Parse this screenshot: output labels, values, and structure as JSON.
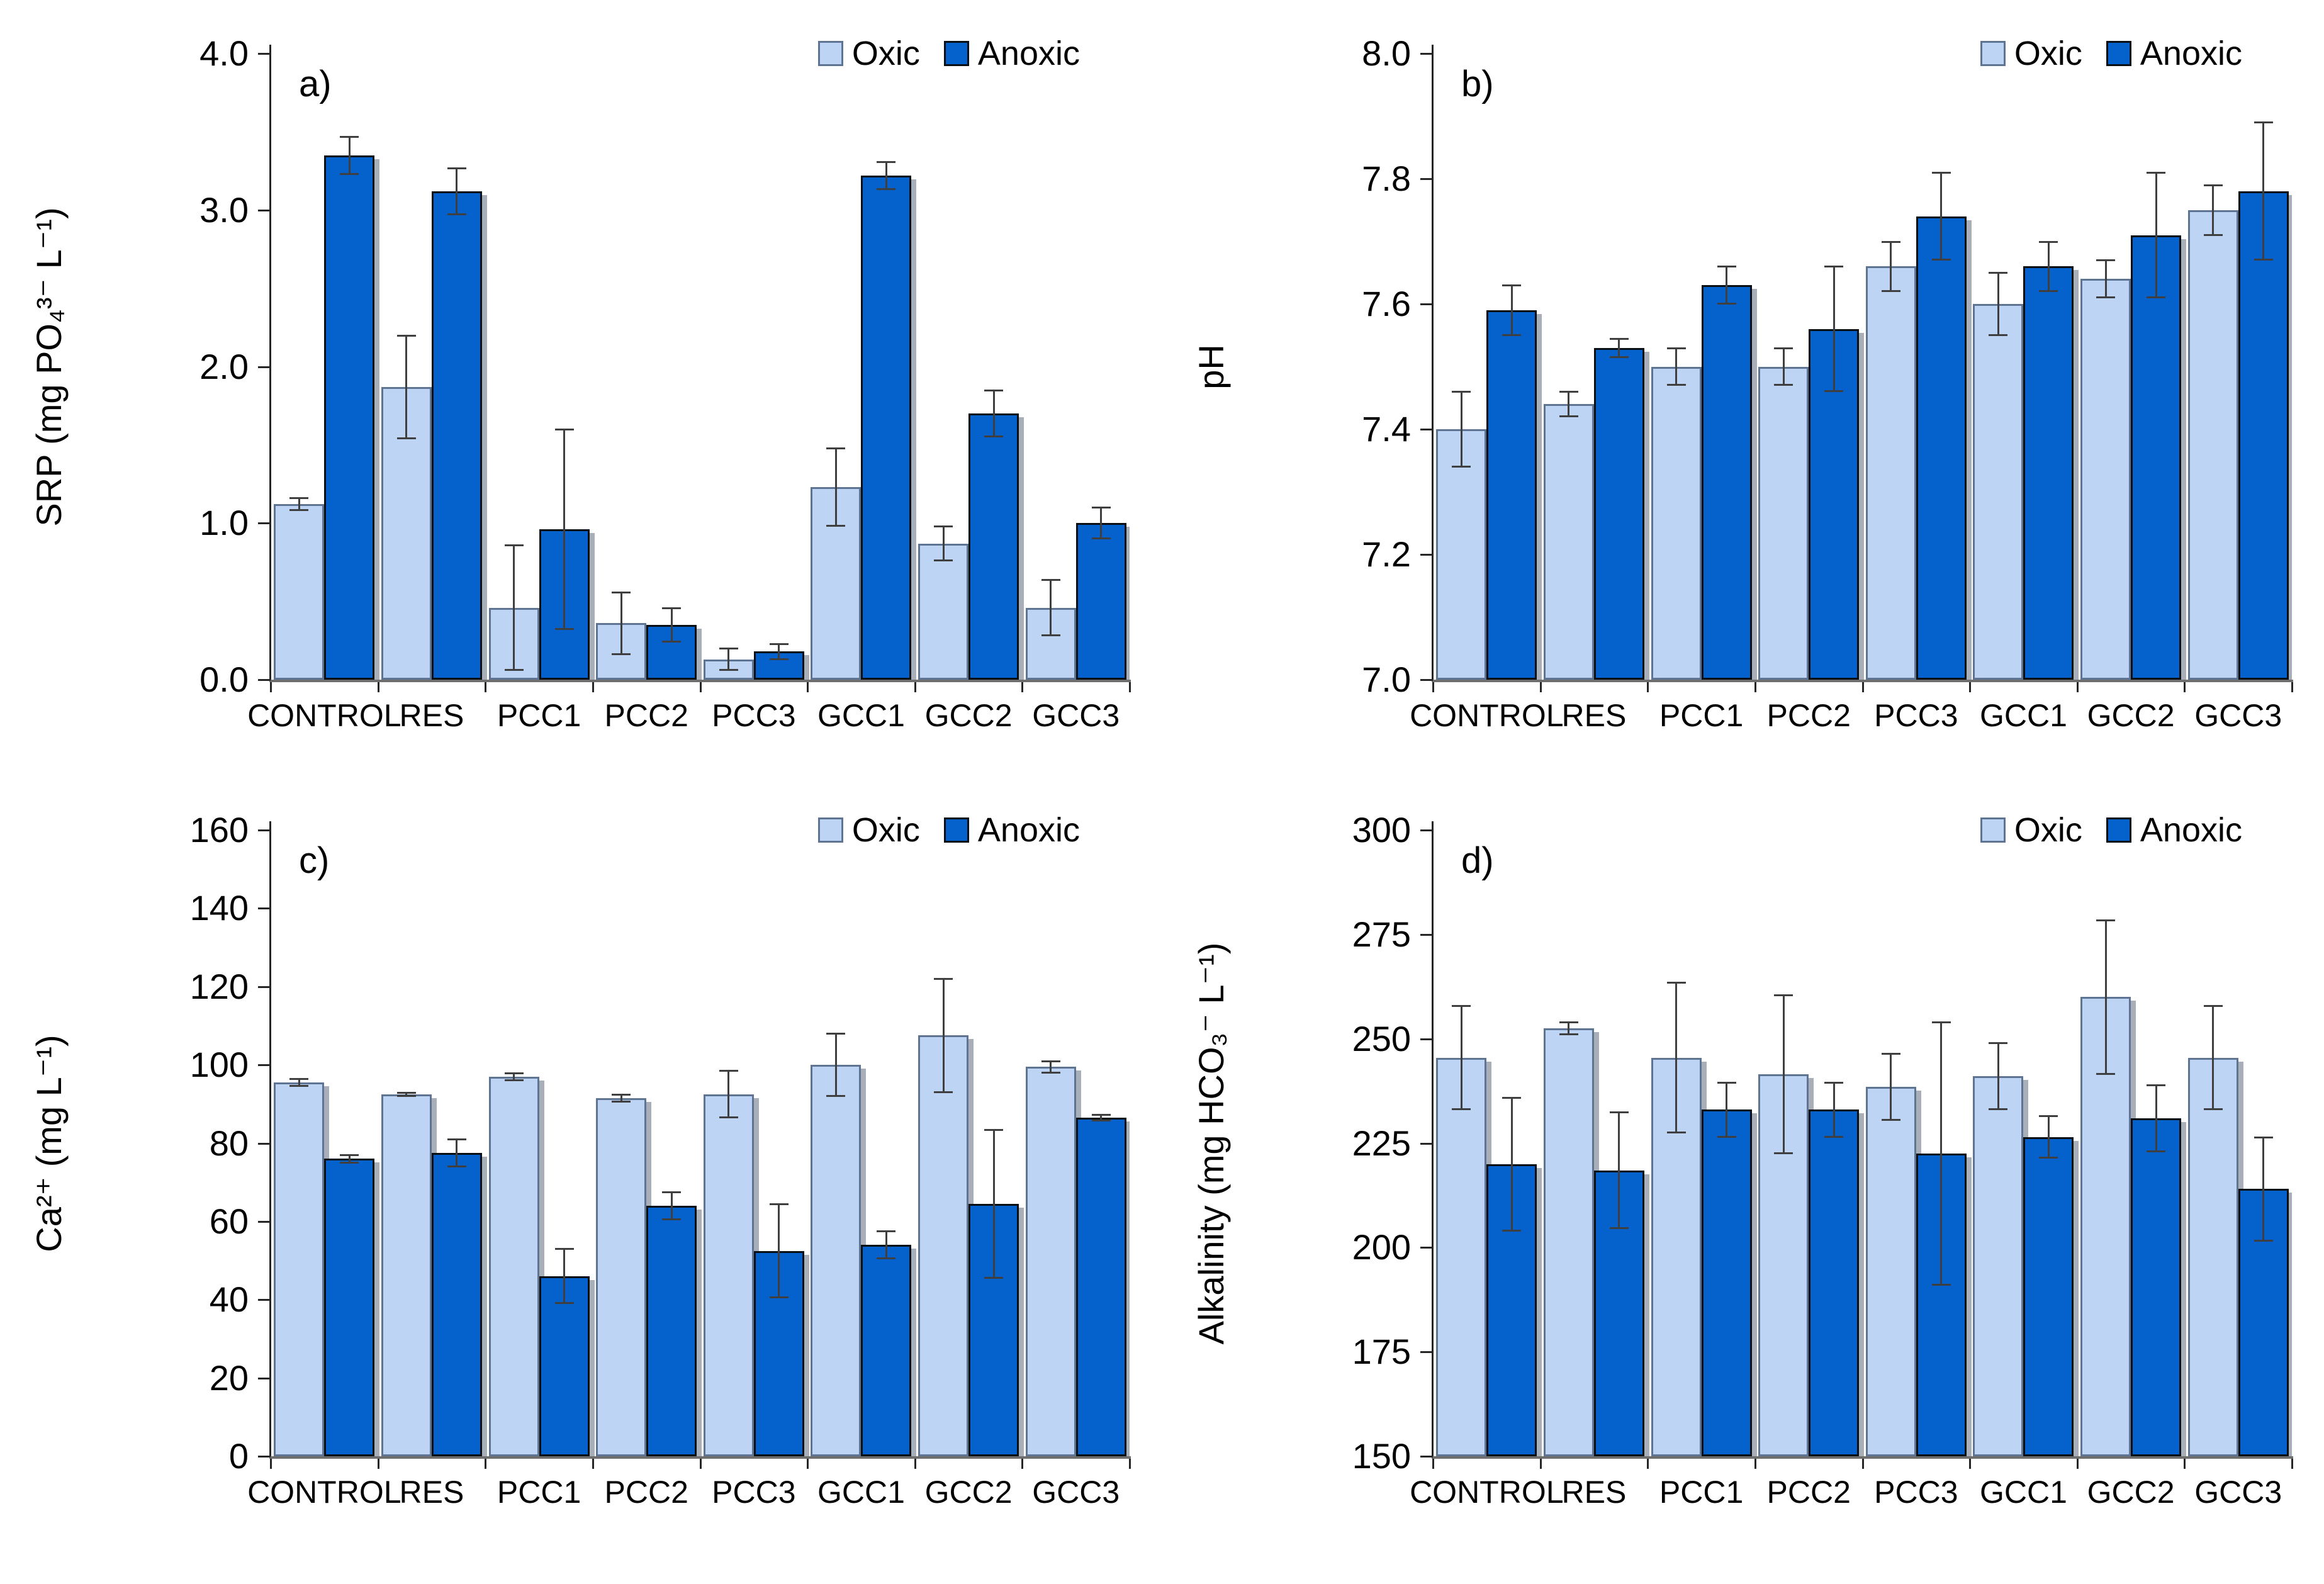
{
  "legend": {
    "oxic_label": "Oxic",
    "anoxic_label": "Anoxic"
  },
  "colors": {
    "oxic_fill": "#BDD4F5",
    "oxic_border": "#5F7392",
    "anoxic_fill": "#0562CC",
    "anoxic_border": "#0A0F14",
    "error_bar": "#3F3F3F",
    "bar_shadow": "#A9AFB8",
    "axis": "#262626",
    "baseline": "#6E6E6E"
  },
  "chart_data": [
    {
      "type": "bar",
      "panel": "a)",
      "ylabel": "SRP (mg PO₄³⁻ L⁻¹)",
      "ylim": [
        0,
        4
      ],
      "ytick_values": [
        0,
        1,
        2,
        3,
        4
      ],
      "yticks": [
        "0.0",
        "1.0",
        "2.0",
        "3.0",
        "4.0"
      ],
      "grid": false,
      "legend_position": "top-right",
      "categories": [
        "CONTROL",
        "RES",
        "PCC1",
        "PCC2",
        "PCC3",
        "GCC1",
        "GCC2",
        "GCC3"
      ],
      "series": [
        {
          "name": "Oxic",
          "values": [
            1.12,
            1.87,
            0.46,
            0.36,
            0.13,
            1.23,
            0.87,
            0.46
          ],
          "errors": [
            0.04,
            0.33,
            0.4,
            0.2,
            0.07,
            0.25,
            0.11,
            0.18
          ]
        },
        {
          "name": "Anoxic",
          "values": [
            3.35,
            3.12,
            0.96,
            0.35,
            0.18,
            3.22,
            1.7,
            1.0
          ],
          "errors": [
            0.12,
            0.15,
            0.64,
            0.11,
            0.05,
            0.09,
            0.15,
            0.1
          ]
        }
      ]
    },
    {
      "type": "bar",
      "panel": "b)",
      "ylabel": "pH",
      "ylim": [
        7.0,
        8.0
      ],
      "ytick_values": [
        7.0,
        7.2,
        7.4,
        7.6,
        7.8,
        8.0
      ],
      "yticks": [
        "7.0",
        "7.2",
        "7.4",
        "7.6",
        "7.8",
        "8.0"
      ],
      "grid": false,
      "legend_position": "top-right",
      "categories": [
        "CONTROL",
        "RES",
        "PCC1",
        "PCC2",
        "PCC3",
        "GCC1",
        "GCC2",
        "GCC3"
      ],
      "series": [
        {
          "name": "Oxic",
          "values": [
            7.4,
            7.44,
            7.5,
            7.5,
            7.66,
            7.6,
            7.64,
            7.75
          ],
          "errors": [
            0.06,
            0.02,
            0.03,
            0.03,
            0.04,
            0.05,
            0.03,
            0.04
          ]
        },
        {
          "name": "Anoxic",
          "values": [
            7.59,
            7.53,
            7.63,
            7.56,
            7.74,
            7.66,
            7.71,
            7.78
          ],
          "errors": [
            0.04,
            0.015,
            0.03,
            0.1,
            0.07,
            0.04,
            0.1,
            0.11
          ]
        }
      ]
    },
    {
      "type": "bar",
      "panel": "c)",
      "ylabel": "Ca²⁺ (mg L⁻¹)",
      "ylim": [
        0,
        160
      ],
      "ytick_values": [
        0,
        20,
        40,
        60,
        80,
        100,
        120,
        140,
        160
      ],
      "yticks": [
        "0",
        "20",
        "40",
        "60",
        "80",
        "100",
        "120",
        "140",
        "160"
      ],
      "grid": false,
      "legend_position": "top-right",
      "categories": [
        "CONTROL",
        "RES",
        "PCC1",
        "PCC2",
        "PCC3",
        "GCC1",
        "GCC2",
        "GCC3"
      ],
      "series": [
        {
          "name": "Oxic",
          "values": [
            95.5,
            92.5,
            97.0,
            91.5,
            92.5,
            100.0,
            107.5,
            99.5
          ],
          "errors": [
            1.0,
            0.5,
            1.0,
            1.0,
            6.0,
            8.0,
            14.5,
            1.5
          ]
        },
        {
          "name": "Anoxic",
          "values": [
            76.0,
            77.5,
            46.0,
            64.0,
            52.5,
            54.0,
            64.5,
            86.5
          ],
          "errors": [
            1.0,
            3.5,
            7.0,
            3.5,
            12.0,
            3.5,
            19.0,
            0.8
          ]
        }
      ]
    },
    {
      "type": "bar",
      "panel": "d)",
      "ylabel": "Alkalinity (mg HCO₃⁻ L⁻¹)",
      "ylim": [
        150,
        300
      ],
      "ytick_values": [
        150,
        175,
        200,
        225,
        250,
        275,
        300
      ],
      "yticks": [
        "150",
        "175",
        "200",
        "225",
        "250",
        "275",
        "300"
      ],
      "grid": false,
      "legend_position": "top-right",
      "categories": [
        "CONTROL",
        "RES",
        "PCC1",
        "PCC2",
        "PCC3",
        "GCC1",
        "GCC2",
        "GCC3"
      ],
      "series": [
        {
          "name": "Oxic",
          "values": [
            245.5,
            252.5,
            245.5,
            241.5,
            238.5,
            241.0,
            260.0,
            245.5
          ],
          "errors": [
            12.5,
            1.5,
            18.0,
            19.0,
            8.0,
            8.0,
            18.5,
            12.5
          ]
        },
        {
          "name": "Anoxic",
          "values": [
            220.0,
            218.5,
            233.0,
            233.0,
            222.5,
            226.5,
            231.0,
            214.0
          ],
          "errors": [
            16.0,
            14.0,
            6.5,
            6.5,
            31.5,
            5.0,
            8.0,
            12.5
          ]
        }
      ]
    }
  ]
}
